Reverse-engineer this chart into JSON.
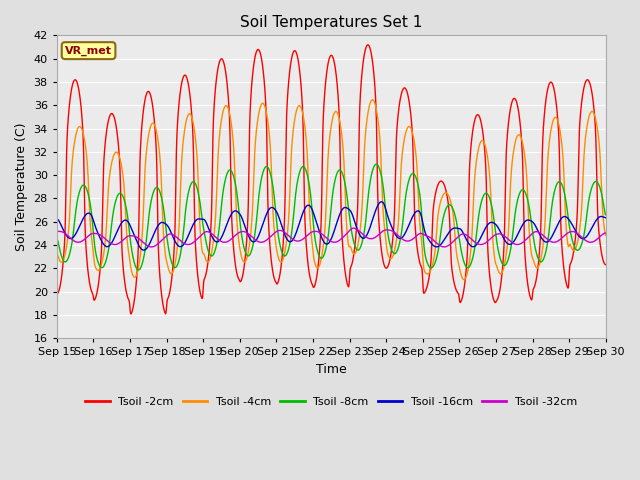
{
  "title": "Soil Temperatures Set 1",
  "xlabel": "Time",
  "ylabel": "Soil Temperature (C)",
  "ylim": [
    16,
    42
  ],
  "yticks": [
    16,
    18,
    20,
    22,
    24,
    26,
    28,
    30,
    32,
    34,
    36,
    38,
    40,
    42
  ],
  "xtick_labels": [
    "Sep 15",
    "Sep 16",
    "Sep 17",
    "Sep 18",
    "Sep 19",
    "Sep 20",
    "Sep 21",
    "Sep 22",
    "Sep 23",
    "Sep 24",
    "Sep 25",
    "Sep 26",
    "Sep 27",
    "Sep 28",
    "Sep 29",
    "Sep 30"
  ],
  "annotation_text": "VR_met",
  "annotation_bg": "#FFFFA0",
  "annotation_border": "#8B6914",
  "colors": {
    "Tsoil -2cm": "#FF0000",
    "Tsoil -4cm": "#FF8C00",
    "Tsoil -8cm": "#00BB00",
    "Tsoil -16cm": "#0000CC",
    "Tsoil -32cm": "#CC00CC"
  },
  "bg_color": "#E0E0E0",
  "plot_bg": "#EBEBEB",
  "grid_color": "#FFFFFF",
  "linewidth": 1.0,
  "figsize": [
    6.4,
    4.8
  ],
  "dpi": 100
}
